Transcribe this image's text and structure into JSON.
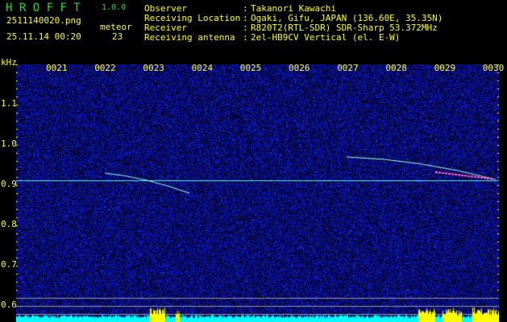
{
  "header": {
    "app_title": "H R O F F T",
    "version": "1.0.0",
    "filename": "2511140020.png",
    "datetime": "25.11.14 00:20",
    "meteor_label": "meteor",
    "meteor_count": "23",
    "info": [
      {
        "label": "Observer",
        "value": "Takanori Kawachi"
      },
      {
        "label": "Receiving Location",
        "value": "Ogaki, Gifu, JAPAN (136.60E, 35.35N)"
      },
      {
        "label": "Receiver",
        "value": "R820T2(RTL-SDR) SDR-Sharp 53.372MHz"
      },
      {
        "label": "Receiving antenna",
        "value": "2el-HB9CV Vertical (el. E-W)"
      }
    ]
  },
  "axis": {
    "y_unit": "kHz",
    "y_ticks": [
      "1.1",
      "1.0",
      "0.9",
      "0.8",
      "0.7",
      "0.6"
    ],
    "x_ticks": [
      "0021",
      "0022",
      "0023",
      "0024",
      "0025",
      "0026",
      "0027",
      "0028",
      "0029",
      "0030"
    ]
  },
  "colors": {
    "text": "#ffff00",
    "title": "#22dd22",
    "background": "#02022a",
    "noise": "#1a2acc",
    "carrier": "#66ffee",
    "level": "#00ffff",
    "level_peak": "#ffff00"
  }
}
